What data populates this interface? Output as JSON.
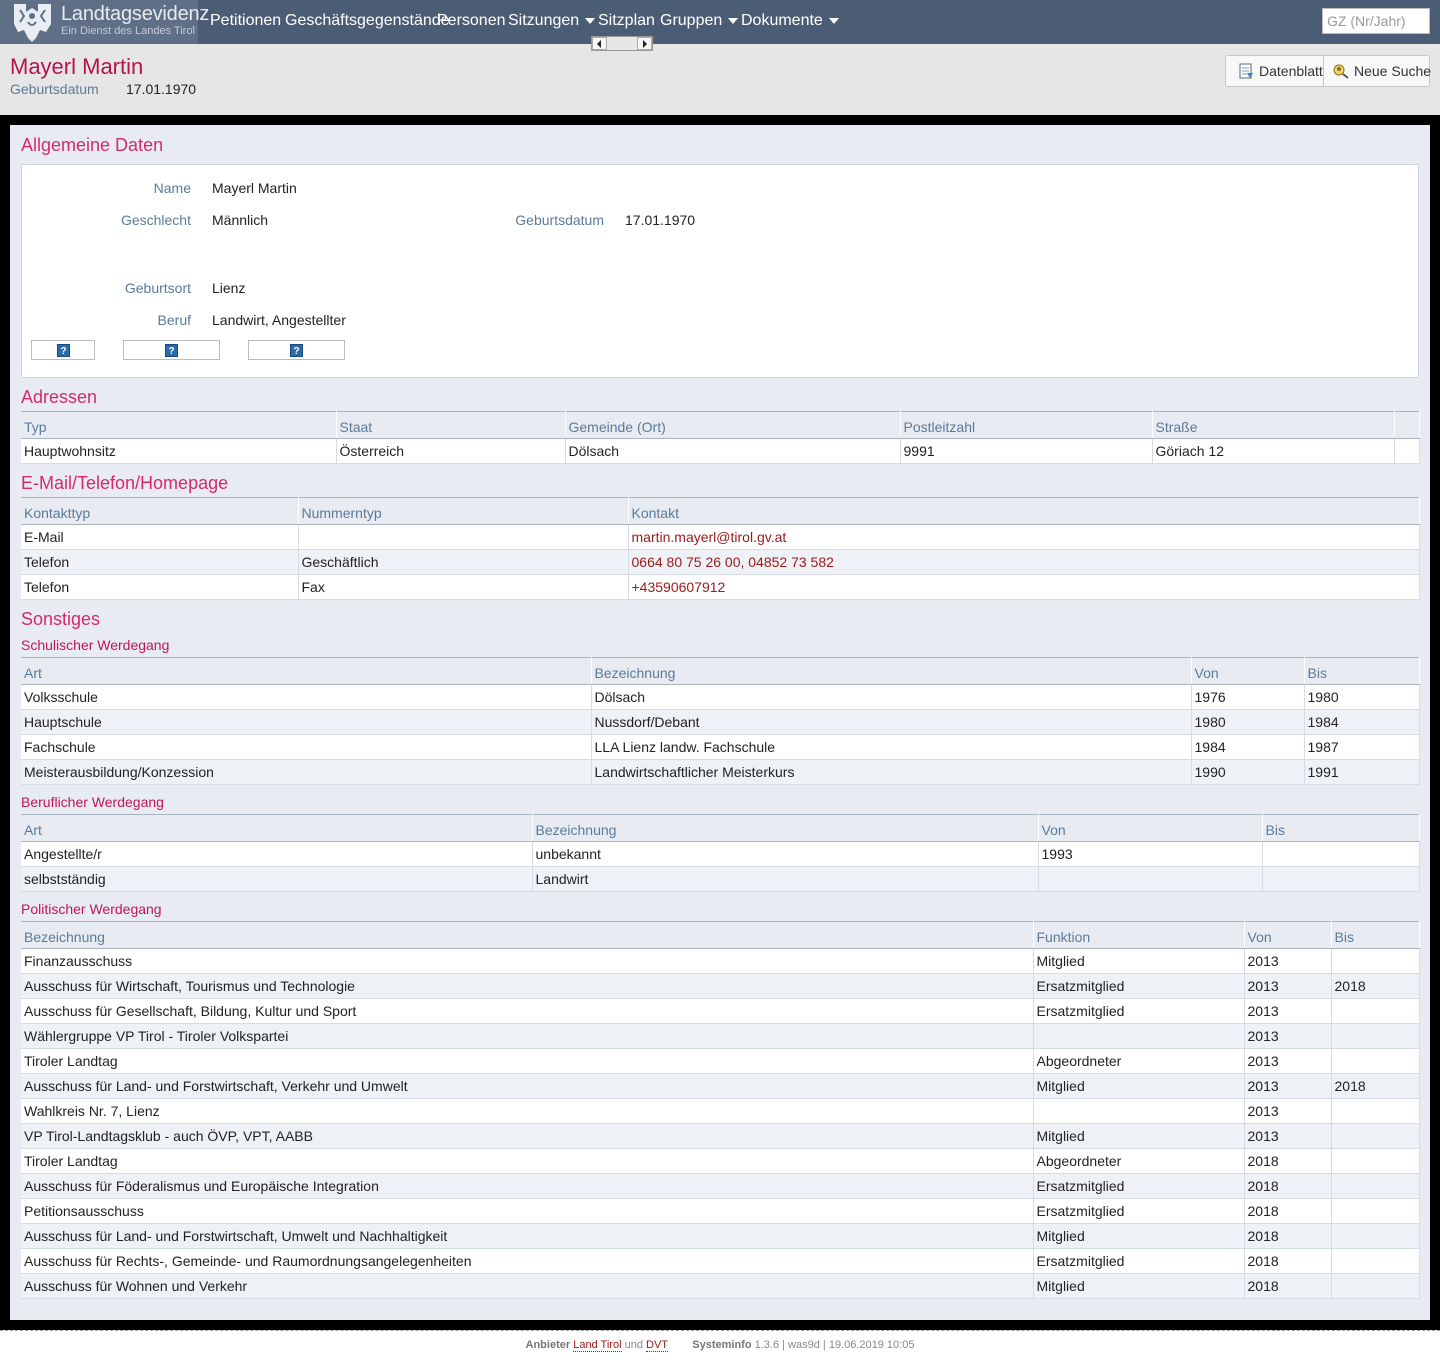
{
  "brand": {
    "title": "Landtagsevidenz",
    "subtitle": "Ein Dienst des Landes Tirol",
    "logo_icon": "tirol-eagle-icon"
  },
  "nav": {
    "items": [
      {
        "label": "Petitionen",
        "dropdown": false
      },
      {
        "label": "Geschäftsgegenstände",
        "dropdown": false
      },
      {
        "label": "Personen",
        "dropdown": false
      },
      {
        "label": "Sitzungen",
        "dropdown": true
      },
      {
        "label": "Sitzplan",
        "dropdown": false
      },
      {
        "label": "Gruppen",
        "dropdown": true
      },
      {
        "label": "Dokumente",
        "dropdown": true
      }
    ],
    "search_placeholder": "GZ (Nr/Jahr)"
  },
  "header": {
    "name": "Mayerl Martin",
    "birth_label": "Geburtsdatum",
    "birth_value": "17.01.1970",
    "datenblatt_label": "Datenblatt",
    "neue_suche_label": "Neue Suche"
  },
  "allgemein": {
    "title": "Allgemeine Daten",
    "name_label": "Name",
    "name_value": "Mayerl Martin",
    "geschlecht_label": "Geschlecht",
    "geschlecht_value": "Männlich",
    "geburtsdatum_label": "Geburtsdatum",
    "geburtsdatum_value": "17.01.1970",
    "geburtsort_label": "Geburtsort",
    "geburtsort_value": "Lienz",
    "beruf_label": "Beruf",
    "beruf_value": "Landwirt, Angestellter",
    "help_icon": "?"
  },
  "adressen": {
    "title": "Adressen",
    "headers": [
      "Typ",
      "Staat",
      "Gemeinde (Ort)",
      "Postleitzahl",
      "Straße"
    ],
    "rows": [
      [
        "Hauptwohnsitz",
        "Österreich",
        "Dölsach",
        "9991",
        "Göriach 12"
      ]
    ]
  },
  "kontakt": {
    "title": "E-Mail/Telefon/Homepage",
    "headers": [
      "Kontakttyp",
      "Nummerntyp",
      "Kontakt"
    ],
    "rows": [
      [
        "E-Mail",
        "",
        "martin.mayerl@tirol.gv.at"
      ],
      [
        "Telefon",
        "Geschäftlich",
        "0664 80 75 26 00, 04852 73 582"
      ],
      [
        "Telefon",
        "Fax",
        "+43590607912"
      ]
    ]
  },
  "sonstiges": {
    "title": "Sonstiges",
    "schule": {
      "title": "Schulischer Werdegang",
      "headers": [
        "Art",
        "Bezeichnung",
        "Von",
        "Bis"
      ],
      "rows": [
        [
          "Volksschule",
          "Dölsach",
          "1976",
          "1980"
        ],
        [
          "Hauptschule",
          "Nussdorf/Debant",
          "1980",
          "1984"
        ],
        [
          "Fachschule",
          "LLA Lienz landw. Fachschule",
          "1984",
          "1987"
        ],
        [
          "Meisterausbildung/Konzession",
          "Landwirtschaftlicher Meisterkurs",
          "1990",
          "1991"
        ]
      ]
    },
    "beruf": {
      "title": "Beruflicher Werdegang",
      "headers": [
        "Art",
        "Bezeichnung",
        "Von",
        "Bis"
      ],
      "rows": [
        [
          "Angestellte/r",
          "unbekannt",
          "1993",
          ""
        ],
        [
          "selbstständig",
          "Landwirt",
          "",
          ""
        ]
      ]
    },
    "politik": {
      "title": "Politischer Werdegang",
      "headers": [
        "Bezeichnung",
        "Funktion",
        "Von",
        "Bis"
      ],
      "rows": [
        [
          "Finanzausschuss",
          "Mitglied",
          "2013",
          ""
        ],
        [
          "Ausschuss für Wirtschaft, Tourismus und Technologie",
          "Ersatzmitglied",
          "2013",
          "2018"
        ],
        [
          "Ausschuss für Gesellschaft, Bildung, Kultur und Sport",
          "Ersatzmitglied",
          "2013",
          ""
        ],
        [
          "Wählergruppe VP Tirol - Tiroler Volkspartei",
          "",
          "2013",
          ""
        ],
        [
          "Tiroler Landtag",
          "Abgeordneter",
          "2013",
          ""
        ],
        [
          "Ausschuss für Land- und Forstwirtschaft, Verkehr und Umwelt",
          "Mitglied",
          "2013",
          "2018"
        ],
        [
          "Wahlkreis Nr. 7, Lienz",
          "",
          "2013",
          ""
        ],
        [
          "VP Tirol-Landtagsklub - auch ÖVP, VPT, AABB",
          "Mitglied",
          "2013",
          ""
        ],
        [
          "Tiroler Landtag",
          "Abgeordneter",
          "2018",
          ""
        ],
        [
          "Ausschuss für Föderalismus und Europäische Integration",
          "Ersatzmitglied",
          "2018",
          ""
        ],
        [
          "Petitionsausschuss",
          "Ersatzmitglied",
          "2018",
          ""
        ],
        [
          "Ausschuss für Land- und Forstwirtschaft, Umwelt und Nachhaltigkeit",
          "Mitglied",
          "2018",
          ""
        ],
        [
          "Ausschuss für Rechts-, Gemeinde- und Raumordnungsangelegenheiten",
          "Ersatzmitglied",
          "2018",
          ""
        ],
        [
          "Ausschuss für Wohnen und Verkehr",
          "Mitglied",
          "2018",
          ""
        ]
      ]
    }
  },
  "footer": {
    "anbieter_label": "Anbieter",
    "land_tirol": "Land Tirol",
    "und": "und",
    "dvt": "DVT",
    "systeminfo_label": "Systeminfo",
    "systeminfo_value": "1.3.6 | was9d | 19.06.2019 10:05"
  },
  "colors": {
    "navbar": "#4b5d74",
    "accent": "#d42a6c",
    "label": "#5a7a9a",
    "link": "#9b1b1b"
  }
}
